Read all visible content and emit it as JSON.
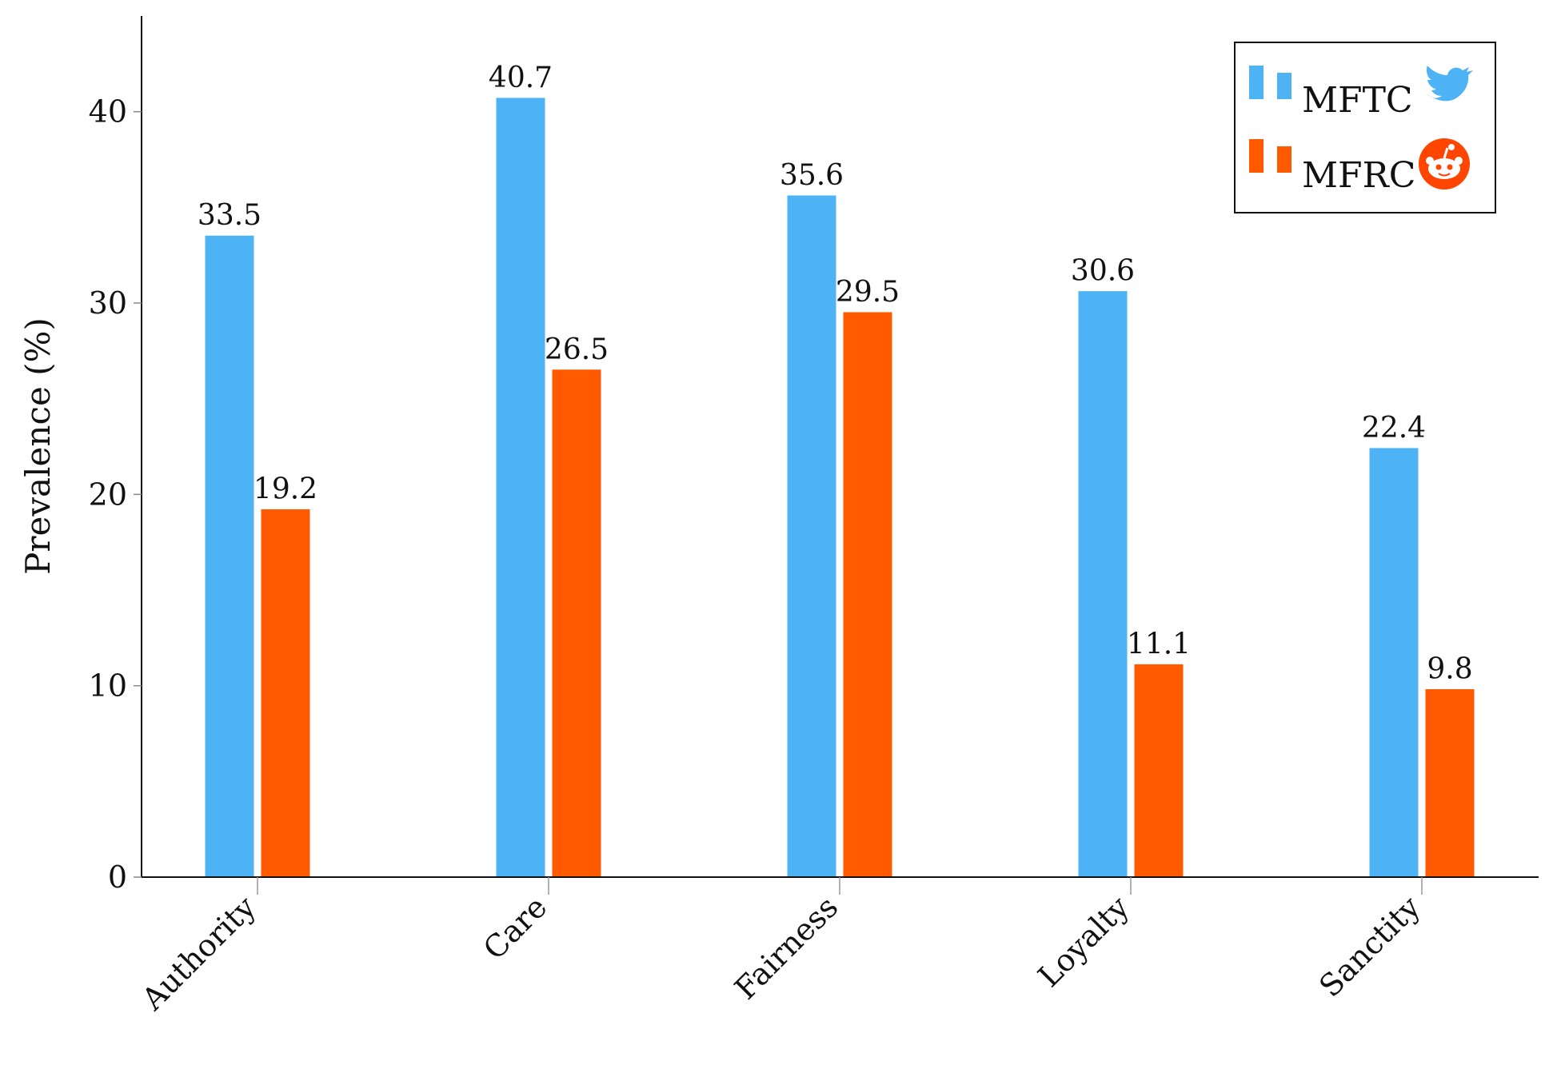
{
  "chart_data": {
    "type": "bar",
    "categories": [
      "Authority",
      "Care",
      "Fairness",
      "Loyalty",
      "Sanctity"
    ],
    "series": [
      {
        "name": "MFTC",
        "values": [
          33.5,
          40.7,
          35.6,
          30.6,
          22.4
        ],
        "value_labels": [
          "33.5",
          "40.7",
          "35.6",
          "30.6",
          "22.4"
        ],
        "color": "#4DB3F4",
        "icon": "twitter-bird-icon"
      },
      {
        "name": "MFRC",
        "values": [
          19.2,
          26.5,
          29.5,
          11.1,
          9.8
        ],
        "value_labels": [
          "19.2",
          "26.5",
          "29.5",
          "11.1",
          "9.8"
        ],
        "color": "#FF5A00",
        "icon": "reddit-alien-icon"
      }
    ],
    "ylabel": "Prevalence (%)",
    "ylim": [
      0,
      45
    ],
    "yticks": [
      0,
      10,
      20,
      30,
      40
    ],
    "ytick_labels": [
      "0",
      "10",
      "20",
      "30",
      "40"
    ],
    "grid": false,
    "legend_position": "top-right"
  }
}
